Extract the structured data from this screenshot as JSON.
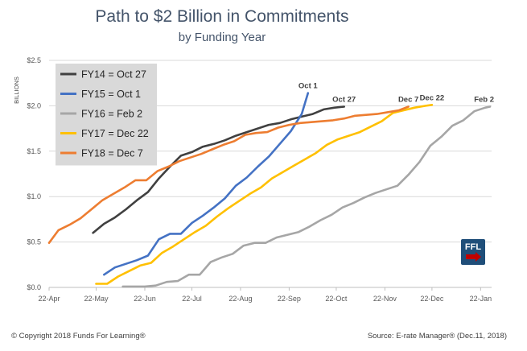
{
  "title": "Path to $2 Billion in Commitments",
  "subtitle": "by Funding Year",
  "copyright": "© Copyright 2018 Funds For Learning®",
  "source": "Source: E-rate Manager® (Dec.11, 2018)",
  "logo_text": "FFL",
  "colors": {
    "background": "#ffffff",
    "grid": "#d9d9d9",
    "legend_bg": "#d9d9d9",
    "logo": "#1f4e79",
    "logo_accent": "#c00000"
  },
  "chart_data": {
    "type": "line",
    "ylabel": "BILLIONS",
    "ylim": [
      0,
      2.5
    ],
    "yticks": [
      0,
      0.5,
      1.0,
      1.5,
      2.0,
      2.5
    ],
    "ytick_labels": [
      "$0.0",
      "$0.5",
      "$1.0",
      "$1.5",
      "$2.0",
      "$2.5"
    ],
    "xlim": [
      "2018-04-22",
      "2019-01-29"
    ],
    "xticks": [
      "2018-04-22",
      "2018-05-22",
      "2018-06-22",
      "2018-07-22",
      "2018-08-22",
      "2018-09-22",
      "2018-10-22",
      "2018-11-22",
      "2018-12-22",
      "2019-01-22"
    ],
    "xtick_labels": [
      "22-Apr",
      "22-May",
      "22-Jun",
      "22-Jul",
      "22-Aug",
      "22-Sep",
      "22-Oct",
      "22-Nov",
      "22-Dec",
      "22-Jan"
    ],
    "grid": "horizontal",
    "legend": "top-left",
    "series": [
      {
        "name": "FY14 = Oct 27",
        "end_label": "Oct 27",
        "color": "#404040",
        "points": [
          [
            "2018-05-20",
            0.6
          ],
          [
            "2018-05-27",
            0.7
          ],
          [
            "2018-06-03",
            0.77
          ],
          [
            "2018-06-10",
            0.86
          ],
          [
            "2018-06-17",
            0.96
          ],
          [
            "2018-06-24",
            1.05
          ],
          [
            "2018-07-01",
            1.2
          ],
          [
            "2018-07-08",
            1.33
          ],
          [
            "2018-07-15",
            1.45
          ],
          [
            "2018-07-22",
            1.49
          ],
          [
            "2018-07-29",
            1.55
          ],
          [
            "2018-08-05",
            1.58
          ],
          [
            "2018-08-12",
            1.62
          ],
          [
            "2018-08-19",
            1.67
          ],
          [
            "2018-08-26",
            1.71
          ],
          [
            "2018-09-02",
            1.75
          ],
          [
            "2018-09-09",
            1.79
          ],
          [
            "2018-09-16",
            1.81
          ],
          [
            "2018-09-23",
            1.85
          ],
          [
            "2018-09-30",
            1.88
          ],
          [
            "2018-10-07",
            1.91
          ],
          [
            "2018-10-14",
            1.96
          ],
          [
            "2018-10-21",
            1.98
          ],
          [
            "2018-10-27",
            1.99
          ]
        ]
      },
      {
        "name": "FY15 = Oct 1",
        "end_label": "Oct 1",
        "color": "#4472c4",
        "points": [
          [
            "2018-05-27",
            0.14
          ],
          [
            "2018-06-03",
            0.22
          ],
          [
            "2018-06-10",
            0.26
          ],
          [
            "2018-06-17",
            0.3
          ],
          [
            "2018-06-24",
            0.35
          ],
          [
            "2018-07-01",
            0.53
          ],
          [
            "2018-07-08",
            0.59
          ],
          [
            "2018-07-15",
            0.59
          ],
          [
            "2018-07-22",
            0.71
          ],
          [
            "2018-07-29",
            0.79
          ],
          [
            "2018-08-05",
            0.88
          ],
          [
            "2018-08-12",
            0.98
          ],
          [
            "2018-08-19",
            1.12
          ],
          [
            "2018-08-26",
            1.21
          ],
          [
            "2018-09-02",
            1.33
          ],
          [
            "2018-09-09",
            1.44
          ],
          [
            "2018-09-16",
            1.58
          ],
          [
            "2018-09-23",
            1.72
          ],
          [
            "2018-09-30",
            1.91
          ],
          [
            "2018-10-04",
            2.14
          ]
        ]
      },
      {
        "name": "FY16 = Feb 2",
        "end_label": "Feb 2",
        "color": "#a6a6a6",
        "points": [
          [
            "2018-06-08",
            0.01
          ],
          [
            "2018-06-15",
            0.01
          ],
          [
            "2018-06-22",
            0.01
          ],
          [
            "2018-06-29",
            0.02
          ],
          [
            "2018-07-06",
            0.06
          ],
          [
            "2018-07-13",
            0.07
          ],
          [
            "2018-07-20",
            0.14
          ],
          [
            "2018-07-27",
            0.14
          ],
          [
            "2018-08-03",
            0.28
          ],
          [
            "2018-08-10",
            0.33
          ],
          [
            "2018-08-17",
            0.37
          ],
          [
            "2018-08-24",
            0.46
          ],
          [
            "2018-08-31",
            0.49
          ],
          [
            "2018-09-07",
            0.49
          ],
          [
            "2018-09-14",
            0.55
          ],
          [
            "2018-09-21",
            0.58
          ],
          [
            "2018-09-28",
            0.61
          ],
          [
            "2018-10-05",
            0.67
          ],
          [
            "2018-10-12",
            0.74
          ],
          [
            "2018-10-19",
            0.8
          ],
          [
            "2018-10-26",
            0.88
          ],
          [
            "2018-11-02",
            0.93
          ],
          [
            "2018-11-09",
            0.99
          ],
          [
            "2018-11-16",
            1.04
          ],
          [
            "2018-11-23",
            1.08
          ],
          [
            "2018-11-30",
            1.12
          ],
          [
            "2018-12-07",
            1.24
          ],
          [
            "2018-12-14",
            1.38
          ],
          [
            "2018-12-21",
            1.56
          ],
          [
            "2018-12-28",
            1.66
          ],
          [
            "2019-01-04",
            1.78
          ],
          [
            "2019-01-11",
            1.84
          ],
          [
            "2019-01-18",
            1.94
          ],
          [
            "2019-01-25",
            1.98
          ],
          [
            "2019-01-28",
            1.99
          ]
        ]
      },
      {
        "name": "FY17 = Dec 22",
        "end_label": "Dec 22",
        "color": "#ffc000",
        "points": [
          [
            "2018-05-22",
            0.04
          ],
          [
            "2018-05-29",
            0.04
          ],
          [
            "2018-06-05",
            0.12
          ],
          [
            "2018-06-12",
            0.18
          ],
          [
            "2018-06-19",
            0.24
          ],
          [
            "2018-06-26",
            0.27
          ],
          [
            "2018-07-03",
            0.38
          ],
          [
            "2018-07-10",
            0.45
          ],
          [
            "2018-07-17",
            0.53
          ],
          [
            "2018-07-24",
            0.61
          ],
          [
            "2018-07-31",
            0.68
          ],
          [
            "2018-08-07",
            0.78
          ],
          [
            "2018-08-14",
            0.87
          ],
          [
            "2018-08-21",
            0.95
          ],
          [
            "2018-08-28",
            1.03
          ],
          [
            "2018-09-04",
            1.1
          ],
          [
            "2018-09-11",
            1.2
          ],
          [
            "2018-09-18",
            1.27
          ],
          [
            "2018-09-25",
            1.34
          ],
          [
            "2018-10-02",
            1.41
          ],
          [
            "2018-10-09",
            1.48
          ],
          [
            "2018-10-16",
            1.57
          ],
          [
            "2018-10-23",
            1.63
          ],
          [
            "2018-10-30",
            1.67
          ],
          [
            "2018-11-06",
            1.71
          ],
          [
            "2018-11-13",
            1.77
          ],
          [
            "2018-11-20",
            1.83
          ],
          [
            "2018-11-27",
            1.92
          ],
          [
            "2018-12-04",
            1.95
          ],
          [
            "2018-12-11",
            1.98
          ],
          [
            "2018-12-18",
            2.0
          ],
          [
            "2018-12-22",
            2.01
          ]
        ]
      },
      {
        "name": "FY18 = Dec 7",
        "end_label": "Dec 7",
        "color": "#ed7d31",
        "points": [
          [
            "2018-04-22",
            0.49
          ],
          [
            "2018-04-28",
            0.63
          ],
          [
            "2018-05-05",
            0.69
          ],
          [
            "2018-05-12",
            0.76
          ],
          [
            "2018-05-19",
            0.86
          ],
          [
            "2018-05-26",
            0.96
          ],
          [
            "2018-06-02",
            1.03
          ],
          [
            "2018-06-09",
            1.1
          ],
          [
            "2018-06-16",
            1.18
          ],
          [
            "2018-06-23",
            1.18
          ],
          [
            "2018-06-30",
            1.28
          ],
          [
            "2018-07-07",
            1.33
          ],
          [
            "2018-07-14",
            1.39
          ],
          [
            "2018-07-21",
            1.43
          ],
          [
            "2018-07-28",
            1.47
          ],
          [
            "2018-08-04",
            1.52
          ],
          [
            "2018-08-11",
            1.57
          ],
          [
            "2018-08-18",
            1.61
          ],
          [
            "2018-08-25",
            1.68
          ],
          [
            "2018-09-01",
            1.7
          ],
          [
            "2018-09-08",
            1.71
          ],
          [
            "2018-09-15",
            1.76
          ],
          [
            "2018-09-22",
            1.79
          ],
          [
            "2018-09-29",
            1.81
          ],
          [
            "2018-10-06",
            1.82
          ],
          [
            "2018-10-13",
            1.83
          ],
          [
            "2018-10-20",
            1.84
          ],
          [
            "2018-10-27",
            1.86
          ],
          [
            "2018-11-03",
            1.89
          ],
          [
            "2018-11-10",
            1.9
          ],
          [
            "2018-11-17",
            1.91
          ],
          [
            "2018-11-24",
            1.93
          ],
          [
            "2018-12-01",
            1.95
          ],
          [
            "2018-12-07",
            1.99
          ]
        ]
      }
    ]
  }
}
